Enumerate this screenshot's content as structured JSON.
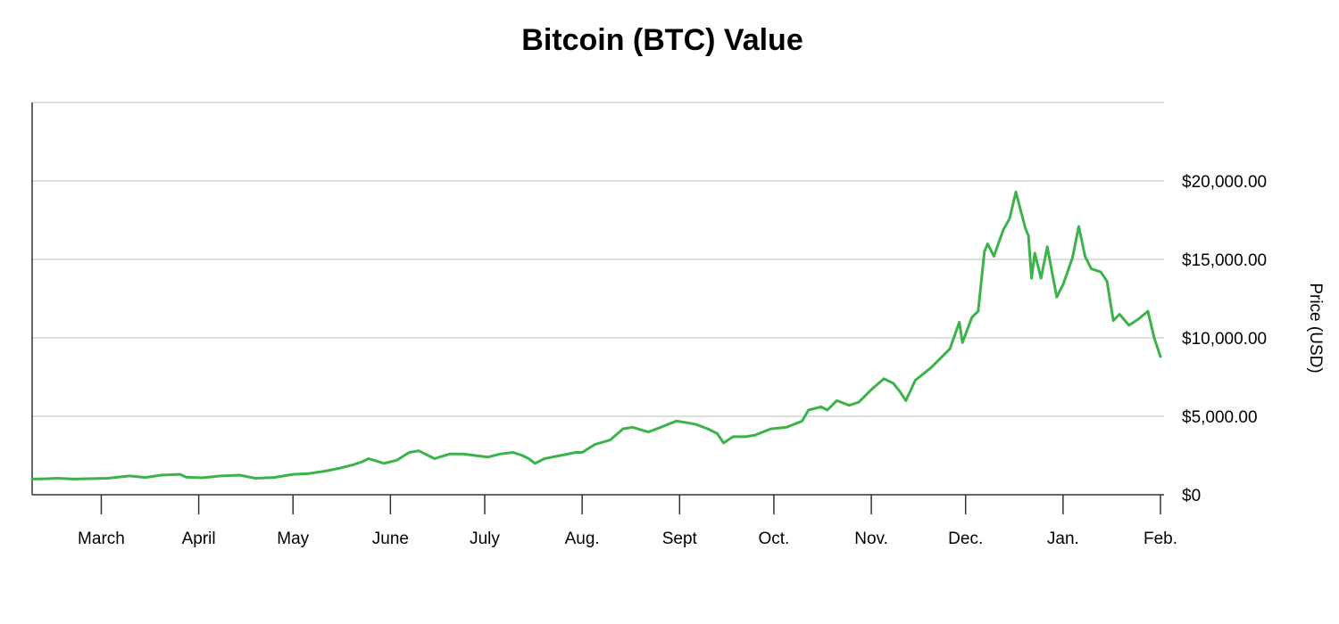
{
  "chart_data": {
    "type": "line",
    "title": "Bitcoin (BTC) Value",
    "xlabel": "",
    "ylabel": "Price (USD)",
    "ylim": [
      0,
      25000
    ],
    "y_ticks": [
      {
        "value": 0,
        "label": "$0"
      },
      {
        "value": 5000,
        "label": "$5,000.00"
      },
      {
        "value": 10000,
        "label": "$10,000.00"
      },
      {
        "value": 15000,
        "label": "$15,000.00"
      },
      {
        "value": 20000,
        "label": "$20,000.00"
      }
    ],
    "x_ticks": [
      {
        "value": "2017-03-01",
        "label": "March"
      },
      {
        "value": "2017-04-01",
        "label": "April"
      },
      {
        "value": "2017-05-01",
        "label": "May"
      },
      {
        "value": "2017-06-01",
        "label": "June"
      },
      {
        "value": "2017-07-01",
        "label": "July"
      },
      {
        "value": "2017-08-01",
        "label": "Aug."
      },
      {
        "value": "2017-09-01",
        "label": "Sept"
      },
      {
        "value": "2017-10-01",
        "label": "Oct."
      },
      {
        "value": "2017-11-01",
        "label": "Nov."
      },
      {
        "value": "2017-12-01",
        "label": "Dec."
      },
      {
        "value": "2018-01-01",
        "label": "Jan."
      },
      {
        "value": "2018-02-01",
        "label": "Feb."
      }
    ],
    "xlim": [
      "2017-02-07",
      "2018-02-01"
    ],
    "grid": "horizontal",
    "line_color": "#3cb34a",
    "series": [
      {
        "values": [
          {
            "x": "2017-02-07",
            "y": 1000
          },
          {
            "x": "2017-02-12",
            "y": 1020
          },
          {
            "x": "2017-02-15",
            "y": 1050
          },
          {
            "x": "2017-02-20",
            "y": 1000
          },
          {
            "x": "2017-03-03",
            "y": 1050
          },
          {
            "x": "2017-03-10",
            "y": 1200
          },
          {
            "x": "2017-03-15",
            "y": 1100
          },
          {
            "x": "2017-03-20",
            "y": 1250
          },
          {
            "x": "2017-03-26",
            "y": 1300
          },
          {
            "x": "2017-03-28",
            "y": 1120
          },
          {
            "x": "2017-04-02",
            "y": 1080
          },
          {
            "x": "2017-04-08",
            "y": 1200
          },
          {
            "x": "2017-04-14",
            "y": 1250
          },
          {
            "x": "2017-04-19",
            "y": 1050
          },
          {
            "x": "2017-04-25",
            "y": 1100
          },
          {
            "x": "2017-05-01",
            "y": 1300
          },
          {
            "x": "2017-05-06",
            "y": 1350
          },
          {
            "x": "2017-05-11",
            "y": 1500
          },
          {
            "x": "2017-05-16",
            "y": 1700
          },
          {
            "x": "2017-05-20",
            "y": 1900
          },
          {
            "x": "2017-05-23",
            "y": 2100
          },
          {
            "x": "2017-05-25",
            "y": 2300
          },
          {
            "x": "2017-05-30",
            "y": 2000
          },
          {
            "x": "2017-06-03",
            "y": 2200
          },
          {
            "x": "2017-06-07",
            "y": 2700
          },
          {
            "x": "2017-06-10",
            "y": 2800
          },
          {
            "x": "2017-06-15",
            "y": 2300
          },
          {
            "x": "2017-06-20",
            "y": 2600
          },
          {
            "x": "2017-06-24",
            "y": 2600
          },
          {
            "x": "2017-06-28",
            "y": 2500
          },
          {
            "x": "2017-07-02",
            "y": 2400
          },
          {
            "x": "2017-07-06",
            "y": 2600
          },
          {
            "x": "2017-07-10",
            "y": 2700
          },
          {
            "x": "2017-07-13",
            "y": 2500
          },
          {
            "x": "2017-07-15",
            "y": 2300
          },
          {
            "x": "2017-07-17",
            "y": 2000
          },
          {
            "x": "2017-07-20",
            "y": 2300
          },
          {
            "x": "2017-07-25",
            "y": 2500
          },
          {
            "x": "2017-07-30",
            "y": 2700
          },
          {
            "x": "2017-08-01",
            "y": 2700
          },
          {
            "x": "2017-08-05",
            "y": 3200
          },
          {
            "x": "2017-08-10",
            "y": 3500
          },
          {
            "x": "2017-08-14",
            "y": 4200
          },
          {
            "x": "2017-08-17",
            "y": 4300
          },
          {
            "x": "2017-08-22",
            "y": 4000
          },
          {
            "x": "2017-08-26",
            "y": 4300
          },
          {
            "x": "2017-08-31",
            "y": 4700
          },
          {
            "x": "2017-09-03",
            "y": 4600
          },
          {
            "x": "2017-09-06",
            "y": 4500
          },
          {
            "x": "2017-09-10",
            "y": 4200
          },
          {
            "x": "2017-09-13",
            "y": 3900
          },
          {
            "x": "2017-09-15",
            "y": 3300
          },
          {
            "x": "2017-09-18",
            "y": 3700
          },
          {
            "x": "2017-09-22",
            "y": 3700
          },
          {
            "x": "2017-09-25",
            "y": 3800
          },
          {
            "x": "2017-09-30",
            "y": 4200
          },
          {
            "x": "2017-10-05",
            "y": 4300
          },
          {
            "x": "2017-10-10",
            "y": 4700
          },
          {
            "x": "2017-10-12",
            "y": 5400
          },
          {
            "x": "2017-10-16",
            "y": 5600
          },
          {
            "x": "2017-10-18",
            "y": 5400
          },
          {
            "x": "2017-10-21",
            "y": 6000
          },
          {
            "x": "2017-10-25",
            "y": 5700
          },
          {
            "x": "2017-10-28",
            "y": 5900
          },
          {
            "x": "2017-11-01",
            "y": 6700
          },
          {
            "x": "2017-11-05",
            "y": 7400
          },
          {
            "x": "2017-11-08",
            "y": 7100
          },
          {
            "x": "2017-11-10",
            "y": 6600
          },
          {
            "x": "2017-11-12",
            "y": 6000
          },
          {
            "x": "2017-11-15",
            "y": 7300
          },
          {
            "x": "2017-11-20",
            "y": 8100
          },
          {
            "x": "2017-11-26",
            "y": 9300
          },
          {
            "x": "2017-11-29",
            "y": 11000
          },
          {
            "x": "2017-11-30",
            "y": 9700
          },
          {
            "x": "2017-12-03",
            "y": 11300
          },
          {
            "x": "2017-12-05",
            "y": 11700
          },
          {
            "x": "2017-12-07",
            "y": 15500
          },
          {
            "x": "2017-12-08",
            "y": 16000
          },
          {
            "x": "2017-12-10",
            "y": 15200
          },
          {
            "x": "2017-12-13",
            "y": 16900
          },
          {
            "x": "2017-12-15",
            "y": 17600
          },
          {
            "x": "2017-12-17",
            "y": 19300
          },
          {
            "x": "2017-12-20",
            "y": 17000
          },
          {
            "x": "2017-12-21",
            "y": 16500
          },
          {
            "x": "2017-12-22",
            "y": 13800
          },
          {
            "x": "2017-12-23",
            "y": 15400
          },
          {
            "x": "2017-12-25",
            "y": 13800
          },
          {
            "x": "2017-12-27",
            "y": 15800
          },
          {
            "x": "2017-12-30",
            "y": 12600
          },
          {
            "x": "2018-01-01",
            "y": 13400
          },
          {
            "x": "2018-01-04",
            "y": 15100
          },
          {
            "x": "2018-01-06",
            "y": 17100
          },
          {
            "x": "2018-01-08",
            "y": 15200
          },
          {
            "x": "2018-01-10",
            "y": 14400
          },
          {
            "x": "2018-01-13",
            "y": 14200
          },
          {
            "x": "2018-01-15",
            "y": 13600
          },
          {
            "x": "2018-01-17",
            "y": 11100
          },
          {
            "x": "2018-01-19",
            "y": 11500
          },
          {
            "x": "2018-01-22",
            "y": 10800
          },
          {
            "x": "2018-01-25",
            "y": 11200
          },
          {
            "x": "2018-01-28",
            "y": 11700
          },
          {
            "x": "2018-01-30",
            "y": 10000
          },
          {
            "x": "2018-02-01",
            "y": 8800
          }
        ]
      }
    ]
  }
}
